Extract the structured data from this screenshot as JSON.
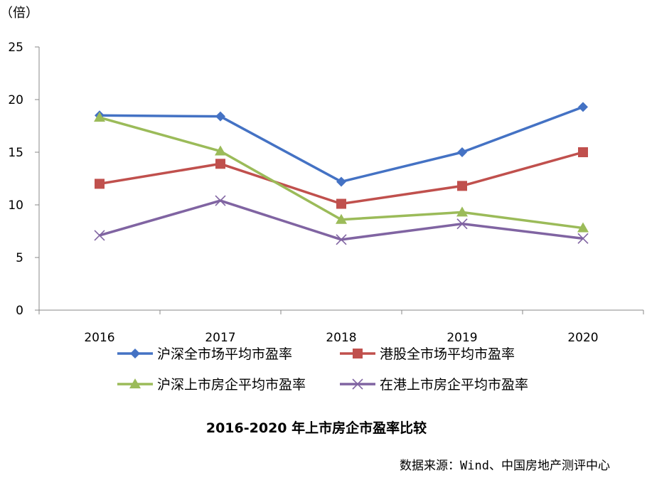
{
  "chart_data": {
    "type": "line",
    "unit_label": "（倍）",
    "categories": [
      "2016",
      "2017",
      "2018",
      "2019",
      "2020"
    ],
    "ylim": [
      0,
      25
    ],
    "yticks": [
      "0",
      "5",
      "10",
      "15",
      "20",
      "25"
    ],
    "grid": false,
    "legend_position": "bottom",
    "title": "2016-2020 年上市房企市盈率比较",
    "source": "数据来源：Wind、中国房地产测评中心",
    "series": [
      {
        "name": "沪深全市场平均市盈率",
        "values": [
          18.5,
          18.4,
          12.2,
          15.0,
          19.3
        ],
        "color": "#4472C4",
        "marker": "diamond"
      },
      {
        "name": "港股全市场平均市盈率",
        "values": [
          12.0,
          13.9,
          10.1,
          11.8,
          15.0
        ],
        "color": "#C0504D",
        "marker": "square"
      },
      {
        "name": "沪深上市房企平均市盈率",
        "values": [
          18.3,
          15.1,
          8.6,
          9.3,
          7.8
        ],
        "color": "#9BBB59",
        "marker": "triangle"
      },
      {
        "name": "在港上市房企平均市盈率",
        "values": [
          7.1,
          10.4,
          6.7,
          8.2,
          6.8
        ],
        "color": "#8064A2",
        "marker": "x"
      }
    ]
  }
}
